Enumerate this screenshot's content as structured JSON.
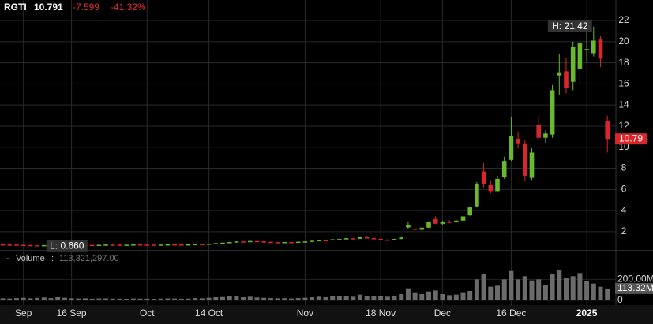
{
  "chart_data": {
    "type": "candlestick",
    "ticker": "RGTI",
    "last": "10.791",
    "change": "-7.599",
    "change_pct": "-41.32%",
    "volume_title": "Volume",
    "volume_value": "113,321,297.00",
    "high_label": "H: 21.42",
    "low_label": "L: 0.660",
    "price_tag": "10.79",
    "volume_tag": "113.32M",
    "up_color": "#6ab82e",
    "down_color": "#d9262b",
    "volume_color": "#6b6b6b",
    "grid": true,
    "categories": [
      null,
      null,
      null,
      "Sep",
      null,
      null,
      null,
      null,
      null,
      null,
      "16 Sep",
      null,
      null,
      null,
      null,
      null,
      null,
      null,
      null,
      null,
      null,
      "Oct",
      null,
      null,
      null,
      null,
      null,
      null,
      null,
      null,
      "14 Oct",
      null,
      null,
      null,
      null,
      null,
      null,
      null,
      null,
      null,
      null,
      null,
      null,
      null,
      "Nov",
      null,
      null,
      null,
      null,
      null,
      null,
      null,
      null,
      null,
      null,
      "18 Nov",
      null,
      null,
      null,
      null,
      null,
      null,
      null,
      null,
      "Dec",
      null,
      null,
      null,
      null,
      null,
      null,
      null,
      null,
      null,
      "16 Dec",
      null,
      null,
      null,
      null,
      null,
      null,
      null,
      null,
      null,
      null,
      "2025",
      null,
      null,
      null
    ],
    "open": [
      0.8,
      0.79,
      0.78,
      0.76,
      0.74,
      0.72,
      0.71,
      0.73,
      0.76,
      0.79,
      0.77,
      0.78,
      0.77,
      0.75,
      0.74,
      0.76,
      0.78,
      0.77,
      0.76,
      0.77,
      0.79,
      0.78,
      0.77,
      0.76,
      0.78,
      0.8,
      0.79,
      0.78,
      0.8,
      0.83,
      0.82,
      0.87,
      0.92,
      0.96,
      1.02,
      1.08,
      1.05,
      1.12,
      1.08,
      1.04,
      1.01,
      0.99,
      1.02,
      1.0,
      1.05,
      1.08,
      1.14,
      1.2,
      1.18,
      1.28,
      1.31,
      1.38,
      1.33,
      1.47,
      1.39,
      1.32,
      1.25,
      1.22,
      1.31,
      2.4,
      2.3,
      2.18,
      2.38,
      3.2,
      2.75,
      2.95,
      2.92,
      3.05,
      3.55,
      4.4,
      7.7,
      6.4,
      5.85,
      7.2,
      8.8,
      10.8,
      10.3,
      7.1,
      12.1,
      10.9,
      11.2,
      16.8,
      17.2,
      16.2,
      17.4,
      19.2,
      18.9,
      20.2,
      12.5
    ],
    "high": [
      0.83,
      0.82,
      0.8,
      0.78,
      0.76,
      0.74,
      0.74,
      0.77,
      0.8,
      0.81,
      0.8,
      0.8,
      0.79,
      0.77,
      0.77,
      0.79,
      0.8,
      0.79,
      0.78,
      0.8,
      0.81,
      0.8,
      0.79,
      0.79,
      0.81,
      0.82,
      0.81,
      0.81,
      0.84,
      0.86,
      0.88,
      0.93,
      0.98,
      1.04,
      1.1,
      1.12,
      1.14,
      1.15,
      1.11,
      1.07,
      1.04,
      1.03,
      1.04,
      1.06,
      1.1,
      1.16,
      1.22,
      1.26,
      1.3,
      1.34,
      1.4,
      1.41,
      1.5,
      1.52,
      1.42,
      1.36,
      1.3,
      1.34,
      1.5,
      2.95,
      2.45,
      2.45,
      3.0,
      3.45,
      3.05,
      3.1,
      3.15,
      3.6,
      4.4,
      6.7,
      8.5,
      6.9,
      7.3,
      9.1,
      12.9,
      11.5,
      10.7,
      9.9,
      12.8,
      11.6,
      15.9,
      18.8,
      18.5,
      20.0,
      20.2,
      21.1,
      21.42,
      20.5,
      13.0
    ],
    "low": [
      0.77,
      0.76,
      0.74,
      0.72,
      0.7,
      0.68,
      0.66,
      0.72,
      0.75,
      0.76,
      0.75,
      0.76,
      0.74,
      0.73,
      0.73,
      0.75,
      0.76,
      0.75,
      0.74,
      0.76,
      0.77,
      0.76,
      0.75,
      0.75,
      0.77,
      0.78,
      0.77,
      0.77,
      0.79,
      0.81,
      0.81,
      0.86,
      0.9,
      0.95,
      1.0,
      1.03,
      1.04,
      1.06,
      1.02,
      0.99,
      0.97,
      0.97,
      0.98,
      0.99,
      1.04,
      1.07,
      1.12,
      1.16,
      1.17,
      1.24,
      1.29,
      1.3,
      1.32,
      1.36,
      1.3,
      1.22,
      1.19,
      1.2,
      1.29,
      2.3,
      2.1,
      2.1,
      2.35,
      2.7,
      2.65,
      2.8,
      2.85,
      3.0,
      3.5,
      4.35,
      6.2,
      5.6,
      5.7,
      7.0,
      8.7,
      9.9,
      6.8,
      6.9,
      10.6,
      10.4,
      10.9,
      15.0,
      15.1,
      15.4,
      16.0,
      18.0,
      18.6,
      17.6,
      9.5
    ],
    "close": [
      0.79,
      0.78,
      0.76,
      0.74,
      0.72,
      0.71,
      0.73,
      0.76,
      0.79,
      0.77,
      0.78,
      0.77,
      0.75,
      0.74,
      0.76,
      0.78,
      0.77,
      0.76,
      0.77,
      0.79,
      0.78,
      0.77,
      0.76,
      0.78,
      0.8,
      0.79,
      0.78,
      0.8,
      0.83,
      0.82,
      0.87,
      0.92,
      0.96,
      1.02,
      1.08,
      1.05,
      1.12,
      1.08,
      1.04,
      1.01,
      0.99,
      1.02,
      1.0,
      1.05,
      1.08,
      1.14,
      1.2,
      1.18,
      1.28,
      1.31,
      1.38,
      1.33,
      1.47,
      1.39,
      1.32,
      1.25,
      1.22,
      1.31,
      1.45,
      2.62,
      2.18,
      2.38,
      2.9,
      2.75,
      2.95,
      2.92,
      3.05,
      3.45,
      4.3,
      6.5,
      6.55,
      5.85,
      7.0,
      8.7,
      11.1,
      10.3,
      7.3,
      9.5,
      10.9,
      11.3,
      15.4,
      17.1,
      15.6,
      19.5,
      19.9,
      19.3,
      20.1,
      18.39,
      10.79
    ],
    "volume": [
      20,
      18,
      22,
      25,
      20,
      24,
      28,
      22,
      30,
      25,
      20,
      18,
      20,
      16,
      18,
      19,
      17,
      16,
      15,
      18,
      17,
      16,
      15,
      17,
      19,
      18,
      16,
      17,
      22,
      20,
      25,
      30,
      32,
      38,
      40,
      30,
      35,
      28,
      25,
      22,
      20,
      21,
      18,
      22,
      25,
      30,
      35,
      30,
      40,
      38,
      45,
      35,
      55,
      45,
      40,
      38,
      35,
      40,
      60,
      115,
      70,
      60,
      85,
      95,
      60,
      50,
      55,
      70,
      90,
      200,
      250,
      130,
      140,
      200,
      280,
      200,
      230,
      190,
      200,
      150,
      250,
      290,
      210,
      230,
      260,
      180,
      160,
      130,
      113.32
    ],
    "ylim": [
      0.2,
      22.6
    ],
    "yticks": [
      2,
      4,
      6,
      8,
      10,
      12,
      14,
      16,
      18,
      20,
      22
    ],
    "volume_ylim": [
      0,
      330
    ],
    "volume_ticks": [
      {
        "value": 200,
        "label": "200.00M"
      },
      0
    ]
  }
}
